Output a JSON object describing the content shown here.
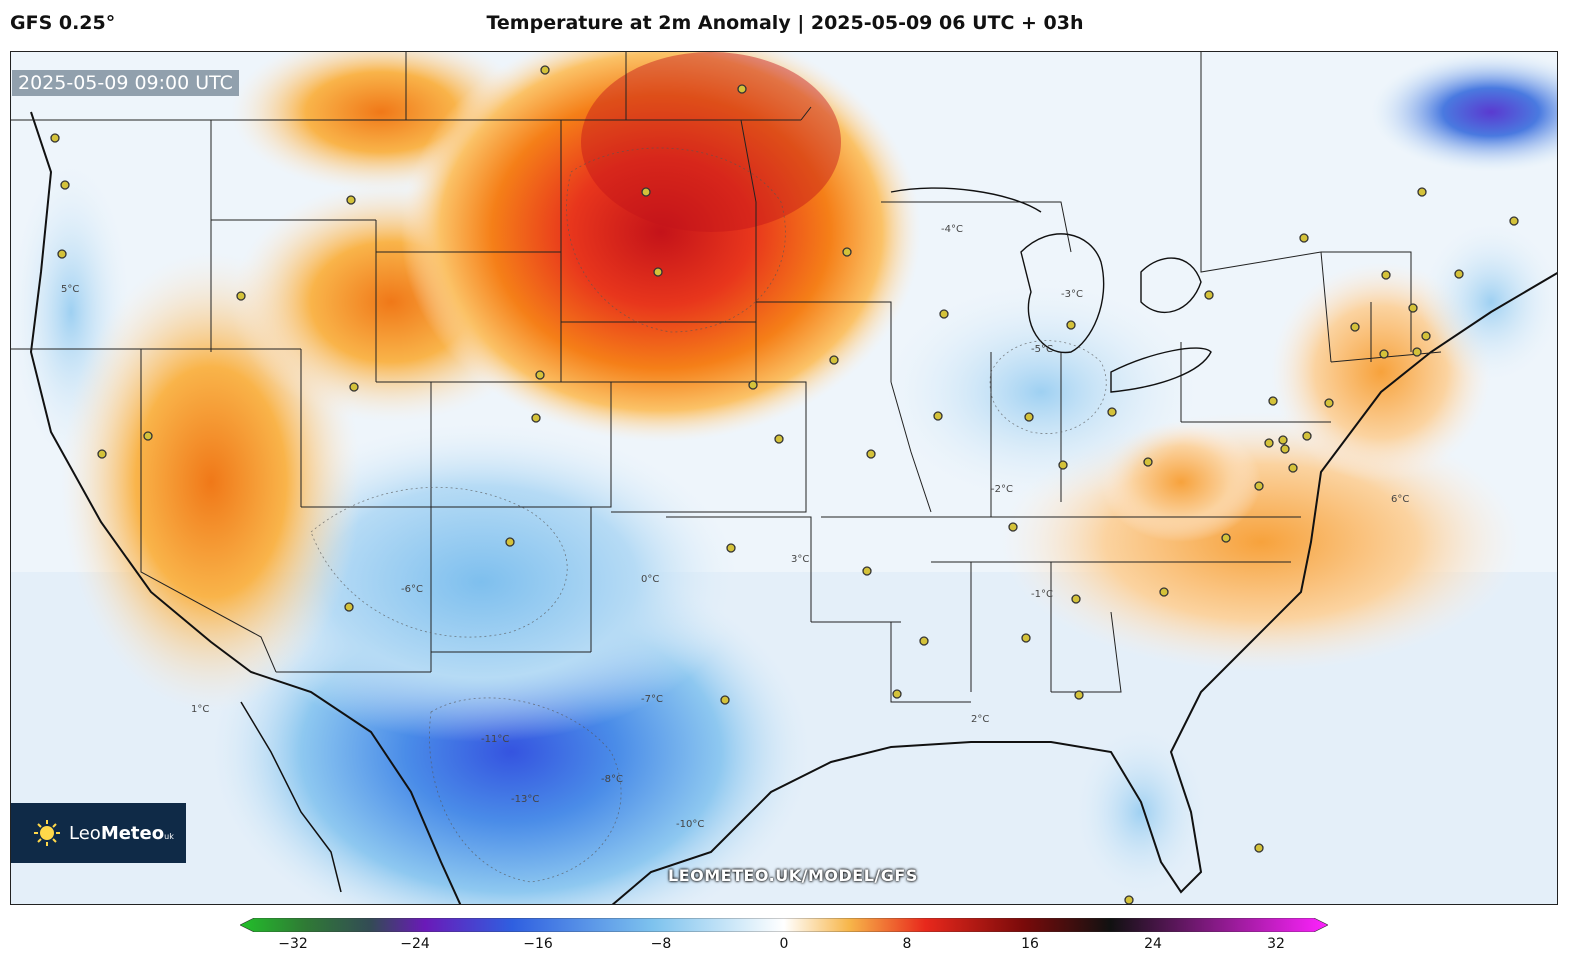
{
  "header": {
    "model": "GFS 0.25°",
    "title": "Temperature at 2m Anomaly | 2025-05-09 06 UTC + 03h"
  },
  "map": {
    "valid_time": "2025-05-09 09:00 UTC",
    "watermark": "LEOMETEO.UK/MODEL/GFS",
    "contour_labels": [
      "-5°C",
      "-4°C",
      "-3°C",
      "-2°C",
      "-1°C",
      "0°C",
      "1°C",
      "2°C",
      "3°C",
      "5°C",
      "6°C",
      "-6°C",
      "-7°C",
      "-8°C",
      "-10°C",
      "-11°C",
      "-13°C"
    ]
  },
  "logo": {
    "brand_main": "Leo",
    "brand_bold": "Meteo",
    "brand_suffix": "uk"
  },
  "colorbar": {
    "ticks": [
      "−32",
      "−24",
      "−16",
      "−8",
      "0",
      "8",
      "16",
      "24",
      "32"
    ],
    "colors": {
      "min": "#22c02a",
      "cold_extreme": "#6a1ab8",
      "cold": "#2f5fe0",
      "cool": "#7ec3ee",
      "neutral": "#ffffff",
      "warm": "#f7b64a",
      "hot": "#e8281c",
      "very_hot": "#7a0a0a",
      "extreme": "#111111",
      "max": "#ff22ff"
    }
  }
}
